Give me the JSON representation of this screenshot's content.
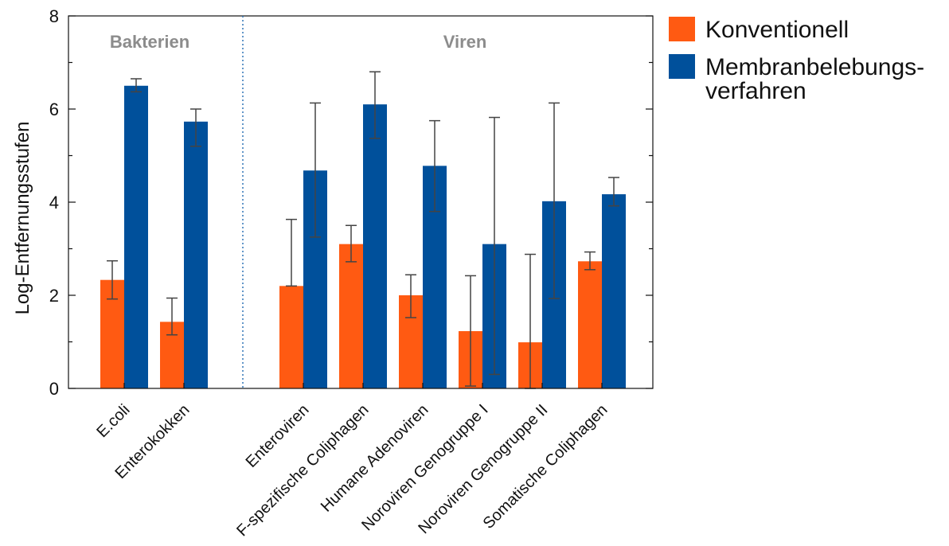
{
  "chart_data": {
    "type": "bar",
    "ylabel": "Log-Entfernungsstufen",
    "xlabel": "",
    "ylim": [
      0,
      8
    ],
    "yticks": [
      0,
      2,
      4,
      6,
      8
    ],
    "grid": false,
    "legend_position": "right-outside-top",
    "groups": [
      {
        "label": "Bakterien",
        "categories": [
          "E.coli",
          "Enterokokken"
        ]
      },
      {
        "label": "Viren",
        "categories": [
          "Enteroviren",
          "F-spezifische Coliphagen",
          "Humane Adenoviren",
          "Noroviren Genogruppe I",
          "Noroviren Genogruppe II",
          "Somatische Coliphagen"
        ]
      }
    ],
    "categories": [
      "E.coli",
      "Enterokokken",
      "Enteroviren",
      "F-spezifische Coliphagen",
      "Humane Adenoviren",
      "Noroviren Genogruppe I",
      "Noroviren Genogruppe II",
      "Somatische Coliphagen"
    ],
    "series": [
      {
        "name": "Konventionell",
        "color": "#ff5a12",
        "values": [
          2.33,
          1.43,
          2.2,
          3.1,
          2.0,
          1.23,
          0.99,
          2.73
        ],
        "err_low": [
          1.92,
          1.15,
          2.2,
          2.72,
          1.52,
          0.05,
          0.0,
          2.55
        ],
        "err_high": [
          2.74,
          1.94,
          3.63,
          3.5,
          2.44,
          2.42,
          2.88,
          2.93
        ]
      },
      {
        "name": "Membranbelebungs-\nverfahren",
        "color": "#00509b",
        "values": [
          6.5,
          5.73,
          4.68,
          6.1,
          4.78,
          3.1,
          4.02,
          4.17
        ],
        "err_low": [
          6.37,
          5.2,
          3.25,
          5.37,
          3.8,
          0.3,
          1.93,
          3.92
        ],
        "err_high": [
          6.65,
          6.0,
          6.13,
          6.8,
          5.75,
          5.82,
          6.13,
          4.53
        ]
      }
    ]
  }
}
